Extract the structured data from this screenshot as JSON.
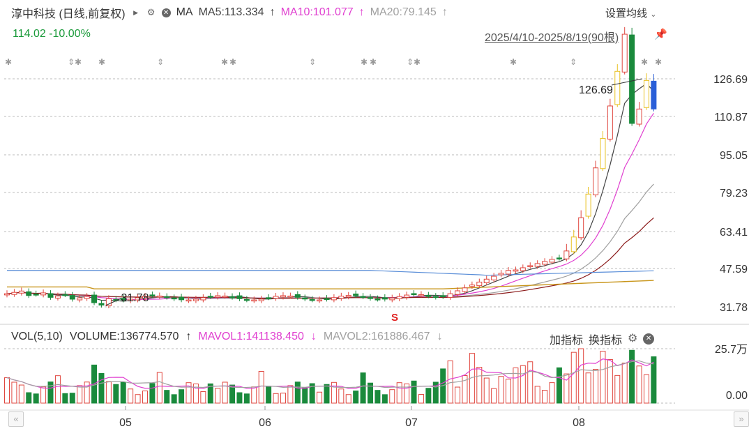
{
  "header": {
    "stock_title": "淳中科技 (日线,前复权)",
    "ma_label": "MA",
    "ma5": "MA5:113.334",
    "ma10": "MA10:101.077",
    "ma20": "MA20:79.145",
    "settings_label": "设置均线",
    "price_change": "114.02 -10.00%",
    "date_range": "2025/4/10-2025/8/19(90根)"
  },
  "volume_header": {
    "vol_label": "VOL(5,10)",
    "volume": "VOLUME:136774.570",
    "mavol1": "MAVOL1:141138.450",
    "mavol2": "MAVOL2:161886.467",
    "add_indicator": "加指标",
    "switch_indicator": "换指标"
  },
  "colors": {
    "up": "#e0473f",
    "down": "#1a8a3c",
    "ma5": "#444444",
    "ma10": "#e040d0",
    "ma20": "#a0a0a0",
    "ma30": "#8b1a1a",
    "ma60": "#5a8ed8",
    "ma120": "#c8951a"
  },
  "chart_data": {
    "type": "candlestick",
    "ylim": [
      25,
      130
    ],
    "price_ticks": [
      "126.69",
      "110.87",
      "95.05",
      "79.23",
      "63.41",
      "47.59",
      "31.78"
    ],
    "x_ticks": [
      "05",
      "06",
      "07",
      "08"
    ],
    "annotations": {
      "high": "126.69",
      "low": "31.78",
      "signal": "S"
    },
    "volume_ticks": [
      "25.7万",
      "0.00"
    ],
    "volume_max": 257000
  }
}
